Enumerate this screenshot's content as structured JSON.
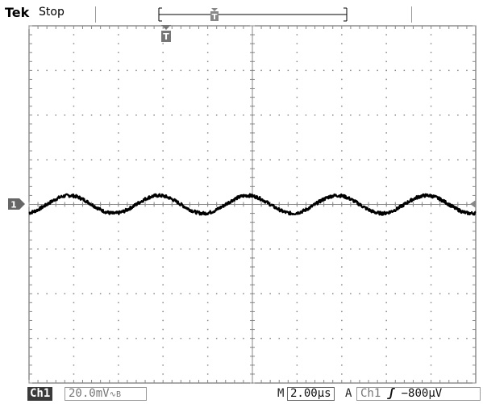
{
  "header": {
    "brand": "Tek",
    "acquisition_state": "Stop",
    "trigger_position_marker": "T"
  },
  "display": {
    "channel_marker": "1",
    "trigger_marker": "T",
    "trace_color": "#000000",
    "grid_color": "#888888"
  },
  "waveform": {
    "type": "line",
    "shape": "sine with noise",
    "center_division": 0,
    "peak_divisions": 0.2,
    "period_divisions": 2.0,
    "x_range_divisions": [
      0,
      10
    ],
    "y_range_divisions": [
      -4,
      4
    ]
  },
  "footer": {
    "channel": "Ch1",
    "volts_per_div": "20.0mV",
    "coupling_icon": "∿",
    "bw_icon": "B",
    "timebase_prefix": "M",
    "timebase": "2.00µs",
    "trigger_mode_label": "A",
    "trigger_source": "Ch1",
    "trigger_edge": "ʃ",
    "trigger_level": "−800µV"
  }
}
